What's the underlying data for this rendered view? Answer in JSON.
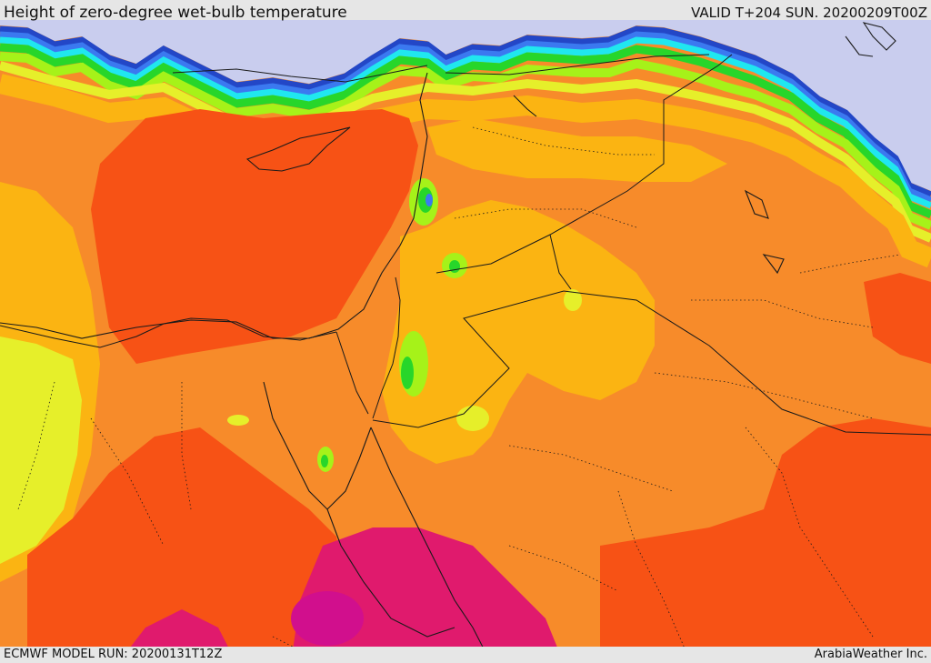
{
  "header": {
    "title": "Height of zero-degree wet-bulb temperature",
    "valid": "VALID T+204 SUN. 20200209T00Z"
  },
  "footer": {
    "model_run": "ECMWF MODEL RUN: 20200131T12Z",
    "credit": "ArabiaWeather Inc."
  },
  "colors": {
    "frame": "#e6e6e6",
    "sea_cold": "#c9cdee",
    "level_magenta": "#e01a6d",
    "level_deep_magenta": "#d10f8d",
    "level_red_orange": "#f75215",
    "level_orange": "#f78b2a",
    "level_amber": "#fbb412",
    "level_yellow": "#e6ef2a",
    "level_lime": "#a6f219",
    "level_green": "#27d62a",
    "level_cyan": "#20e7ef",
    "level_blue": "#3b79f0",
    "level_navy": "#2347c7",
    "borders": "#1a1a1a"
  }
}
